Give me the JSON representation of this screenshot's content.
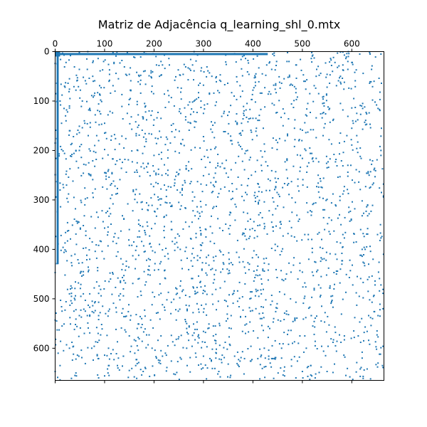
{
  "chart_data": {
    "type": "scatter",
    "title": "Matriz de Adjacência q_learning_shl_0.mtx",
    "xlabel": "",
    "ylabel": "",
    "matrix_size": 665,
    "xlim": [
      0,
      665
    ],
    "ylim": [
      665,
      0
    ],
    "x_ticks": [
      0,
      100,
      200,
      300,
      400,
      500,
      600
    ],
    "y_ticks": [
      0,
      100,
      200,
      300,
      400,
      500,
      600
    ],
    "x_tick_position": "top",
    "grid": false,
    "marker_color": "#1f77b4",
    "dense_row": {
      "row": 5,
      "col_start": 0,
      "col_end": 430
    },
    "dense_col": {
      "col": 5,
      "row_start": 0,
      "row_end": 430
    },
    "scattered_entries_estimate": 2400
  }
}
